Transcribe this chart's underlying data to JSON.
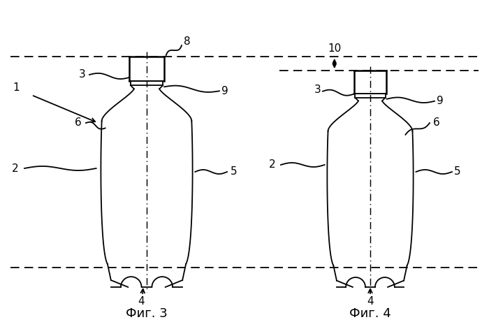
{
  "bg_color": "#ffffff",
  "line_color": "#000000",
  "fig3_label": "Фиг. 3",
  "fig4_label": "Фиг. 4",
  "font_size_label": 13,
  "font_size_num": 11
}
